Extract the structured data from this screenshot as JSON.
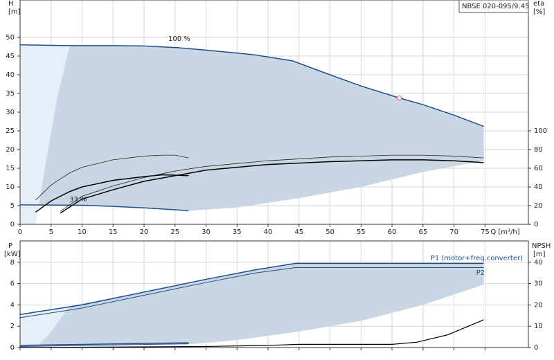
{
  "chart_data": [
    {
      "type": "line",
      "title": "NBSE 020-095/9.45",
      "ylabel": "H",
      "yunit": "[m]",
      "y2label": "eta",
      "y2unit": "[%]",
      "xlabel": "Q [m³/h]",
      "xlim": [
        0,
        82
      ],
      "ylim": [
        0,
        60
      ],
      "y2lim": [
        0,
        240
      ],
      "xticks": [
        0,
        5,
        10,
        15,
        20,
        25,
        30,
        35,
        40,
        45,
        50,
        55,
        60,
        65,
        70,
        75
      ],
      "yticks": [
        0,
        5,
        10,
        15,
        20,
        25,
        30,
        35,
        40,
        45,
        50
      ],
      "y2ticks": [
        0,
        20,
        40,
        60,
        80,
        100
      ],
      "grid": true,
      "annotations": [
        "100 %",
        "33 %"
      ],
      "areas": [
        {
          "color": "#e6eef7",
          "x": [
            0,
            2.5,
            4,
            6,
            8,
            0
          ],
          "values": [
            0,
            0,
            15,
            34,
            48,
            48
          ]
        },
        {
          "color": "#c9d6e3",
          "x": [
            8,
            15,
            20,
            25,
            30,
            35,
            38,
            44,
            50,
            55,
            61.2,
            65,
            70,
            74.8,
            74.8,
            65,
            55,
            45,
            35,
            27.2,
            20,
            15,
            10,
            3,
            4,
            6
          ],
          "values": [
            47.8,
            47.8,
            47.7,
            47.3,
            46.6,
            45.8,
            45.3,
            43.7,
            40,
            37,
            33.8,
            32,
            29.2,
            26.2,
            17,
            14,
            10,
            7,
            4.5,
            3.6,
            4.4,
            4.8,
            5.1,
            5.2,
            15,
            34
          ]
        }
      ],
      "series": [
        {
          "color": "#1f4e8c",
          "width": 1.5,
          "x": [
            0,
            8,
            15,
            20,
            25,
            30,
            35,
            38,
            44,
            50,
            55,
            61.2,
            65,
            70,
            74.8
          ],
          "values": [
            48,
            47.8,
            47.8,
            47.7,
            47.3,
            46.6,
            45.8,
            45.3,
            43.7,
            40,
            37,
            33.8,
            32,
            29.2,
            26.2
          ]
        },
        {
          "color": "#1f4e8c",
          "width": 1.5,
          "x": [
            0,
            10,
            15,
            20,
            25,
            27.2
          ],
          "values": [
            5.2,
            5.1,
            4.8,
            4.4,
            3.9,
            3.6
          ]
        },
        {
          "color": "#222222",
          "width": 0.8,
          "axis": "y2",
          "x": [
            2.5,
            5,
            8,
            10,
            15,
            20,
            23,
            25,
            27.2
          ],
          "values": [
            26,
            42,
            55,
            61,
            69,
            73,
            74,
            74,
            71
          ]
        },
        {
          "color": "#000000",
          "width": 1.5,
          "axis": "y2",
          "x": [
            2.5,
            5,
            8,
            10,
            15,
            20,
            23,
            27.2
          ],
          "values": [
            13,
            25,
            35,
            40,
            47,
            51,
            53,
            52
          ]
        },
        {
          "color": "#222222",
          "width": 0.8,
          "axis": "y2",
          "x": [
            6.5,
            10,
            15,
            20,
            25,
            30,
            40,
            50,
            60,
            65,
            70,
            74.8
          ],
          "values": [
            14,
            30,
            41,
            50,
            57,
            62,
            68,
            72,
            74,
            74,
            73,
            71
          ]
        },
        {
          "color": "#000000",
          "width": 1.5,
          "axis": "y2",
          "x": [
            6.5,
            10,
            15,
            20,
            25,
            30,
            40,
            50,
            60,
            65,
            70,
            74.8
          ],
          "values": [
            12,
            27,
            37,
            46,
            52,
            58,
            64,
            67,
            69,
            69,
            68,
            66
          ]
        }
      ],
      "points": {
        "color": "#e06060",
        "x": [
          61.2
        ],
        "values": [
          33.8
        ]
      }
    },
    {
      "type": "line",
      "ylabel": "P",
      "yunit": "[kW]",
      "y2label": "NPSH",
      "y2unit": "[m]",
      "xlim": [
        0,
        82
      ],
      "ylim": [
        0,
        10
      ],
      "y2lim": [
        0,
        50
      ],
      "xticks": [
        0,
        5,
        10,
        15,
        20,
        25,
        30,
        35,
        40,
        45,
        50,
        55,
        60,
        65,
        70,
        75
      ],
      "yticks": [
        0,
        2,
        4,
        6,
        8
      ],
      "y2ticks": [
        0,
        10,
        20,
        30,
        40
      ],
      "grid": true,
      "areas": [
        {
          "color": "#e6eef7",
          "x": [
            0,
            3,
            5,
            8,
            0
          ],
          "values": [
            0,
            0,
            1.5,
            3.9,
            3.1
          ]
        },
        {
          "color": "#c9d6e3",
          "x": [
            8,
            20,
            30,
            38,
            44.5,
            74.8,
            74.8,
            65,
            55,
            45,
            35,
            27.2,
            10,
            3,
            5
          ],
          "values": [
            3.9,
            5.2,
            6.4,
            7.3,
            7.9,
            7.9,
            5.9,
            4,
            2.5,
            1.5,
            0.7,
            0.3,
            0.3,
            0.2,
            1.5
          ]
        }
      ],
      "series": [
        {
          "name": "P1 (motor+freq.converter)",
          "color": "#1f4e8c",
          "width": 1.5,
          "x": [
            0,
            10,
            20,
            30,
            38,
            44.5,
            74.8
          ],
          "values": [
            3.1,
            4.0,
            5.2,
            6.4,
            7.3,
            7.9,
            7.9
          ]
        },
        {
          "name": "P2",
          "color": "#1f4e8c",
          "width": 1,
          "x": [
            0,
            10,
            20,
            30,
            38,
            44.5,
            74.8
          ],
          "values": [
            2.8,
            3.7,
            4.9,
            6.1,
            7.0,
            7.5,
            7.5
          ]
        },
        {
          "color": "#1f4e8c",
          "width": 1.5,
          "x": [
            0,
            27.2
          ],
          "values": [
            0.2,
            0.45
          ]
        },
        {
          "color": "#1f4e8c",
          "width": 1,
          "x": [
            0,
            27.2
          ],
          "values": [
            0.1,
            0.35
          ]
        },
        {
          "color": "#000000",
          "width": 1.2,
          "axis": "y2",
          "x": [
            0,
            30,
            40,
            45,
            60,
            64,
            69,
            74.8
          ],
          "values": [
            0,
            0.5,
            1,
            1.5,
            1.5,
            2.5,
            6,
            13
          ]
        }
      ]
    }
  ]
}
